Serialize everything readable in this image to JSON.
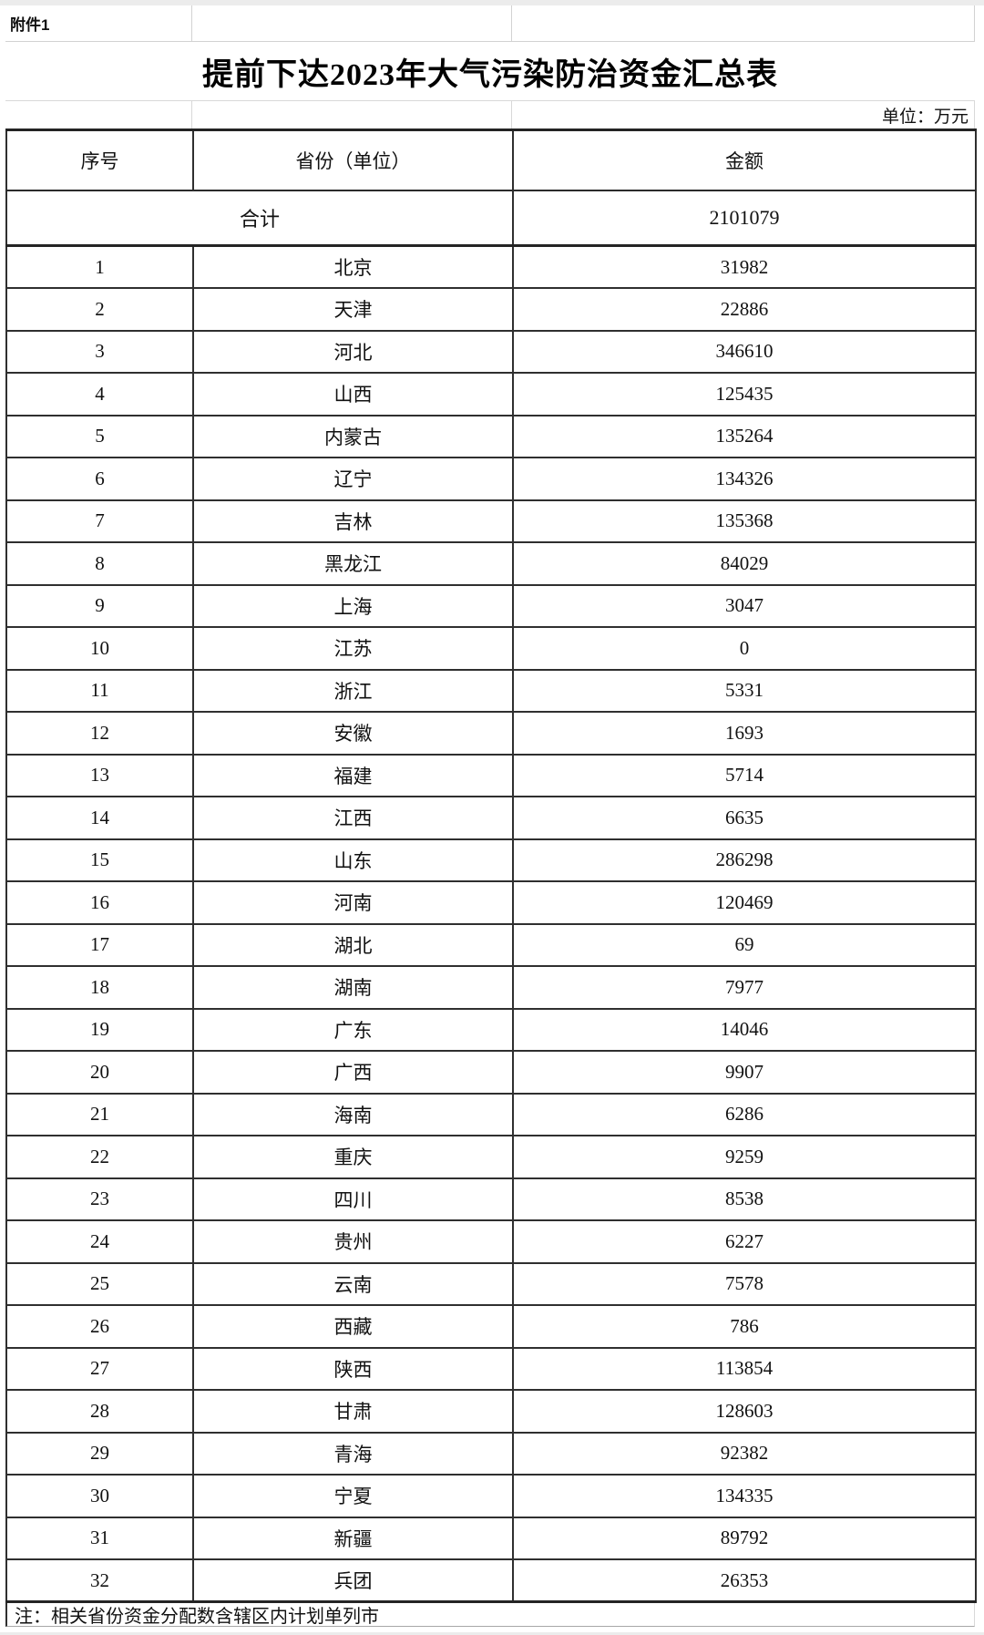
{
  "attachment_label": "附件1",
  "title": "提前下达2023年大气污染防治资金汇总表",
  "unit_note": "单位：万元",
  "table": {
    "headers": [
      "序号",
      "省份（单位）",
      "金额"
    ],
    "total_row": {
      "label": "合计",
      "amount": "2101079"
    },
    "rows": [
      {
        "no": "1",
        "province": "北京",
        "amount": "31982"
      },
      {
        "no": "2",
        "province": "天津",
        "amount": "22886"
      },
      {
        "no": "3",
        "province": "河北",
        "amount": "346610"
      },
      {
        "no": "4",
        "province": "山西",
        "amount": "125435"
      },
      {
        "no": "5",
        "province": "内蒙古",
        "amount": "135264"
      },
      {
        "no": "6",
        "province": "辽宁",
        "amount": "134326"
      },
      {
        "no": "7",
        "province": "吉林",
        "amount": "135368"
      },
      {
        "no": "8",
        "province": "黑龙江",
        "amount": "84029"
      },
      {
        "no": "9",
        "province": "上海",
        "amount": "3047"
      },
      {
        "no": "10",
        "province": "江苏",
        "amount": "0"
      },
      {
        "no": "11",
        "province": "浙江",
        "amount": "5331"
      },
      {
        "no": "12",
        "province": "安徽",
        "amount": "1693"
      },
      {
        "no": "13",
        "province": "福建",
        "amount": "5714"
      },
      {
        "no": "14",
        "province": "江西",
        "amount": "6635"
      },
      {
        "no": "15",
        "province": "山东",
        "amount": "286298"
      },
      {
        "no": "16",
        "province": "河南",
        "amount": "120469"
      },
      {
        "no": "17",
        "province": "湖北",
        "amount": "69"
      },
      {
        "no": "18",
        "province": "湖南",
        "amount": "7977"
      },
      {
        "no": "19",
        "province": "广东",
        "amount": "14046"
      },
      {
        "no": "20",
        "province": "广西",
        "amount": "9907"
      },
      {
        "no": "21",
        "province": "海南",
        "amount": "6286"
      },
      {
        "no": "22",
        "province": "重庆",
        "amount": "9259"
      },
      {
        "no": "23",
        "province": "四川",
        "amount": "8538"
      },
      {
        "no": "24",
        "province": "贵州",
        "amount": "6227"
      },
      {
        "no": "25",
        "province": "云南",
        "amount": "7578"
      },
      {
        "no": "26",
        "province": "西藏",
        "amount": "786"
      },
      {
        "no": "27",
        "province": "陕西",
        "amount": "113854"
      },
      {
        "no": "28",
        "province": "甘肃",
        "amount": "128603"
      },
      {
        "no": "29",
        "province": "青海",
        "amount": "92382"
      },
      {
        "no": "30",
        "province": "宁夏",
        "amount": "134335"
      },
      {
        "no": "31",
        "province": "新疆",
        "amount": "89792"
      },
      {
        "no": "32",
        "province": "兵团",
        "amount": "26353"
      }
    ]
  },
  "footnote": "注：相关省份资金分配数含辖区内计划单列市",
  "colors": {
    "border_dark": "#2b2b2b",
    "grid_light": "#d2d2d2",
    "margin_gray": "#ececec",
    "text": "#111111"
  }
}
